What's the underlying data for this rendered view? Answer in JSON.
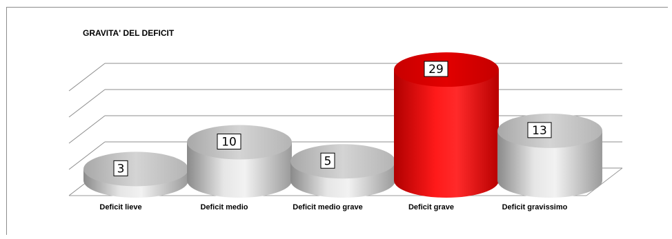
{
  "chart_data": {
    "type": "bar",
    "title": "GRAVITA' DEL DEFICIT",
    "categories": [
      "Deficit lieve",
      "Deficit medio",
      "Deficit medio grave",
      "Deficit grave",
      "Deficit gravissimo"
    ],
    "values": [
      3,
      10,
      5,
      29,
      13
    ],
    "ylim": [
      0,
      35
    ],
    "grid": true,
    "highlight_index": 3,
    "colors": {
      "bar": "#c8c8c8",
      "highlight": "#e00000",
      "grid": "#8c8c8c"
    }
  }
}
